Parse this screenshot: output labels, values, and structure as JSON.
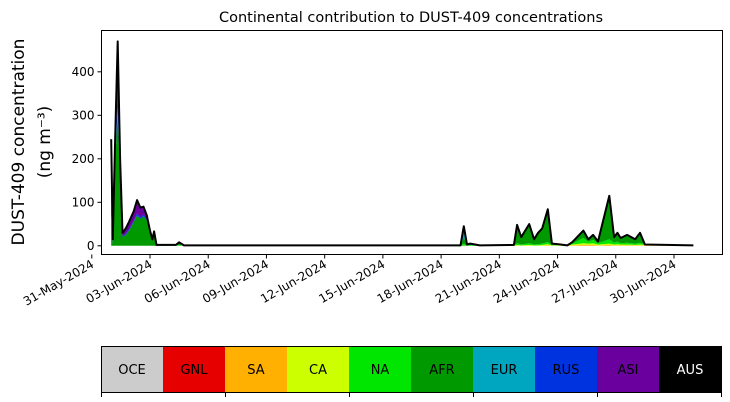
{
  "chart_data": {
    "type": "area",
    "stacked": true,
    "title": "Continental contribution to DUST-409 concentrations",
    "ylabel_line1": "DUST-409 concentration",
    "ylabel_line2": "(ng m⁻³)",
    "xlabel": "",
    "ylim": [
      -20,
      495
    ],
    "xlim": [
      "2024-05-31 12:00",
      "2024-07-02 12:00"
    ],
    "yticks": [
      0,
      100,
      200,
      300,
      400
    ],
    "xticks": [
      "2024-05-31",
      "2024-06-03",
      "2024-06-06",
      "2024-06-09",
      "2024-06-12",
      "2024-06-15",
      "2024-06-18",
      "2024-06-21",
      "2024-06-24",
      "2024-06-27",
      "2024-06-30"
    ],
    "xtick_labels": [
      "31-May-2024",
      "03-Jun-2024",
      "06-Jun-2024",
      "09-Jun-2024",
      "12-Jun-2024",
      "15-Jun-2024",
      "18-Jun-2024",
      "21-Jun-2024",
      "24-Jun-2024",
      "27-Jun-2024",
      "30-Jun-2024"
    ],
    "grid": false,
    "total_line_color": "#000000",
    "x": [
      "2024-06-01 00:00",
      "2024-06-01 02:00",
      "2024-06-01 05:00",
      "2024-06-01 08:00",
      "2024-06-01 11:00",
      "2024-06-01 14:00",
      "2024-06-01 18:00",
      "2024-06-01 22:00",
      "2024-06-02 04:00",
      "2024-06-02 08:00",
      "2024-06-02 12:00",
      "2024-06-02 16:00",
      "2024-06-02 20:00",
      "2024-06-03 00:00",
      "2024-06-03 03:00",
      "2024-06-03 05:00",
      "2024-06-03 08:00",
      "2024-06-04 08:00",
      "2024-06-04 12:00",
      "2024-06-04 18:00",
      "2024-06-19 00:00",
      "2024-06-19 04:00",
      "2024-06-19 08:00",
      "2024-06-19 12:00",
      "2024-06-20 00:00",
      "2024-06-21 18:00",
      "2024-06-21 22:00",
      "2024-06-22 03:00",
      "2024-06-22 13:00",
      "2024-06-22 19:00",
      "2024-06-23 00:00",
      "2024-06-23 05:00",
      "2024-06-23 12:00",
      "2024-06-23 17:00",
      "2024-06-24 00:00",
      "2024-06-24 12:00",
      "2024-06-24 18:00",
      "2024-06-25 08:00",
      "2024-06-25 14:00",
      "2024-06-25 20:00",
      "2024-06-26 02:00",
      "2024-06-26 16:00",
      "2024-06-26 22:00",
      "2024-06-27 02:00",
      "2024-06-27 06:00",
      "2024-06-27 14:00",
      "2024-06-28 00:00",
      "2024-06-28 06:00",
      "2024-06-28 12:00",
      "2024-07-01 00:00"
    ],
    "series": [
      {
        "name": "OCE",
        "color": "#cccccc",
        "values": [
          0,
          0,
          0,
          0,
          0,
          0,
          0,
          0,
          0,
          0,
          0,
          0,
          0,
          0,
          0,
          0,
          0,
          0,
          0,
          0,
          0,
          0,
          0,
          0,
          0,
          0,
          0,
          0,
          0,
          0,
          0,
          0,
          0,
          0,
          0,
          0,
          0,
          0,
          0,
          0,
          0,
          0,
          0,
          0,
          0,
          0,
          0,
          0,
          0,
          0
        ]
      },
      {
        "name": "GNL",
        "color": "#e60000",
        "values": [
          0,
          0,
          0,
          0,
          0,
          0,
          0,
          0,
          0,
          0,
          0,
          0,
          0,
          0,
          0,
          0,
          0,
          0,
          0,
          0,
          0,
          0,
          0,
          0,
          0,
          0,
          0,
          0,
          0,
          0,
          0,
          0,
          0,
          0,
          0,
          0,
          0,
          0,
          0,
          0,
          0,
          0,
          0,
          0,
          0,
          0,
          0,
          0,
          0,
          0
        ]
      },
      {
        "name": "SA",
        "color": "#ffb000",
        "values": [
          0,
          0,
          0,
          0,
          0,
          0,
          0,
          0,
          0,
          0,
          0,
          0,
          0,
          0,
          0,
          0,
          0,
          0,
          0,
          0,
          0,
          0,
          0,
          0,
          0,
          0,
          0,
          0,
          0,
          0,
          0,
          0,
          1,
          0,
          0,
          0,
          1,
          2,
          2,
          2,
          1,
          2,
          1,
          1,
          1,
          1,
          1,
          1,
          1,
          0
        ]
      },
      {
        "name": "CA",
        "color": "#ccff00",
        "values": [
          0,
          0,
          0,
          0,
          0,
          0,
          0,
          0,
          0,
          0,
          0,
          0,
          0,
          0,
          0,
          0,
          0,
          0,
          0,
          0,
          0,
          0,
          0,
          0,
          0,
          0,
          2,
          1,
          2,
          1,
          1,
          2,
          3,
          1,
          1,
          0,
          2,
          4,
          3,
          4,
          2,
          3,
          2,
          3,
          2,
          2,
          1,
          2,
          1,
          1
        ]
      },
      {
        "name": "NA",
        "color": "#00e600",
        "values": [
          0,
          0,
          0,
          0,
          0,
          0,
          0,
          0,
          0,
          0,
          0,
          0,
          0,
          0,
          0,
          0,
          0,
          0,
          2,
          0,
          0,
          5,
          1,
          2,
          0,
          0,
          4,
          2,
          4,
          2,
          3,
          3,
          5,
          1,
          1,
          0,
          2,
          12,
          4,
          8,
          3,
          10,
          4,
          6,
          3,
          4,
          3,
          4,
          1,
          0
        ]
      },
      {
        "name": "AFR",
        "color": "#009a00",
        "values": [
          60,
          5,
          200,
          300,
          150,
          20,
          25,
          35,
          55,
          70,
          62,
          68,
          58,
          30,
          12,
          28,
          2,
          2,
          6,
          1,
          1,
          15,
          2,
          0,
          1,
          2,
          42,
          17,
          44,
          12,
          26,
          35,
          75,
          3,
          2,
          1,
          3,
          17,
          6,
          11,
          4,
          100,
          13,
          20,
          12,
          18,
          10,
          23,
          0,
          0
        ]
      },
      {
        "name": "EUR",
        "color": "#00a5c0",
        "values": [
          10,
          0,
          0,
          20,
          0,
          0,
          0,
          0,
          0,
          0,
          0,
          0,
          0,
          0,
          0,
          0,
          0,
          0,
          0,
          0,
          0,
          25,
          0,
          3,
          0,
          0,
          0,
          0,
          0,
          0,
          0,
          0,
          0,
          0,
          0,
          0,
          0,
          0,
          0,
          0,
          0,
          0,
          0,
          0,
          0,
          0,
          0,
          0,
          0,
          0
        ]
      },
      {
        "name": "RUS",
        "color": "#0033e0",
        "values": [
          30,
          2,
          10,
          40,
          10,
          2,
          3,
          3,
          3,
          5,
          4,
          4,
          2,
          0,
          0,
          0,
          0,
          0,
          0,
          0,
          0,
          0,
          0,
          0,
          0,
          0,
          0,
          0,
          0,
          0,
          0,
          0,
          0,
          0,
          0,
          0,
          0,
          0,
          0,
          0,
          0,
          0,
          0,
          0,
          0,
          0,
          0,
          0,
          0,
          0
        ]
      },
      {
        "name": "ASI",
        "color": "#6a009e",
        "values": [
          145,
          8,
          40,
          110,
          40,
          8,
          12,
          17,
          22,
          30,
          22,
          18,
          10,
          5,
          3,
          5,
          0,
          0,
          0,
          0,
          0,
          0,
          0,
          0,
          0,
          0,
          0,
          0,
          0,
          0,
          0,
          0,
          0,
          0,
          0,
          0,
          0,
          0,
          0,
          0,
          0,
          0,
          0,
          0,
          0,
          0,
          0,
          0,
          0,
          0
        ]
      },
      {
        "name": "AUS",
        "color": "#000000",
        "values": [
          0,
          0,
          0,
          0,
          0,
          0,
          0,
          0,
          0,
          0,
          0,
          0,
          0,
          0,
          0,
          0,
          0,
          0,
          0,
          0,
          0,
          0,
          0,
          0,
          0,
          0,
          0,
          0,
          0,
          0,
          0,
          0,
          0,
          0,
          0,
          0,
          0,
          0,
          0,
          0,
          0,
          0,
          0,
          0,
          0,
          0,
          0,
          0,
          0,
          0
        ]
      }
    ],
    "legend": {
      "placement": "bottom-colorbar",
      "entries": [
        {
          "label": "OCE",
          "color": "#cccccc",
          "text_color": "#000000"
        },
        {
          "label": "GNL",
          "color": "#e60000",
          "text_color": "#000000"
        },
        {
          "label": "SA",
          "color": "#ffb000",
          "text_color": "#000000"
        },
        {
          "label": "CA",
          "color": "#ccff00",
          "text_color": "#000000"
        },
        {
          "label": "NA",
          "color": "#00e600",
          "text_color": "#000000"
        },
        {
          "label": "AFR",
          "color": "#009a00",
          "text_color": "#000000"
        },
        {
          "label": "EUR",
          "color": "#00a5c0",
          "text_color": "#000000"
        },
        {
          "label": "RUS",
          "color": "#0033e0",
          "text_color": "#000000"
        },
        {
          "label": "ASI",
          "color": "#6a009e",
          "text_color": "#000000"
        },
        {
          "label": "AUS",
          "color": "#000000",
          "text_color": "#ffffff"
        }
      ]
    }
  }
}
